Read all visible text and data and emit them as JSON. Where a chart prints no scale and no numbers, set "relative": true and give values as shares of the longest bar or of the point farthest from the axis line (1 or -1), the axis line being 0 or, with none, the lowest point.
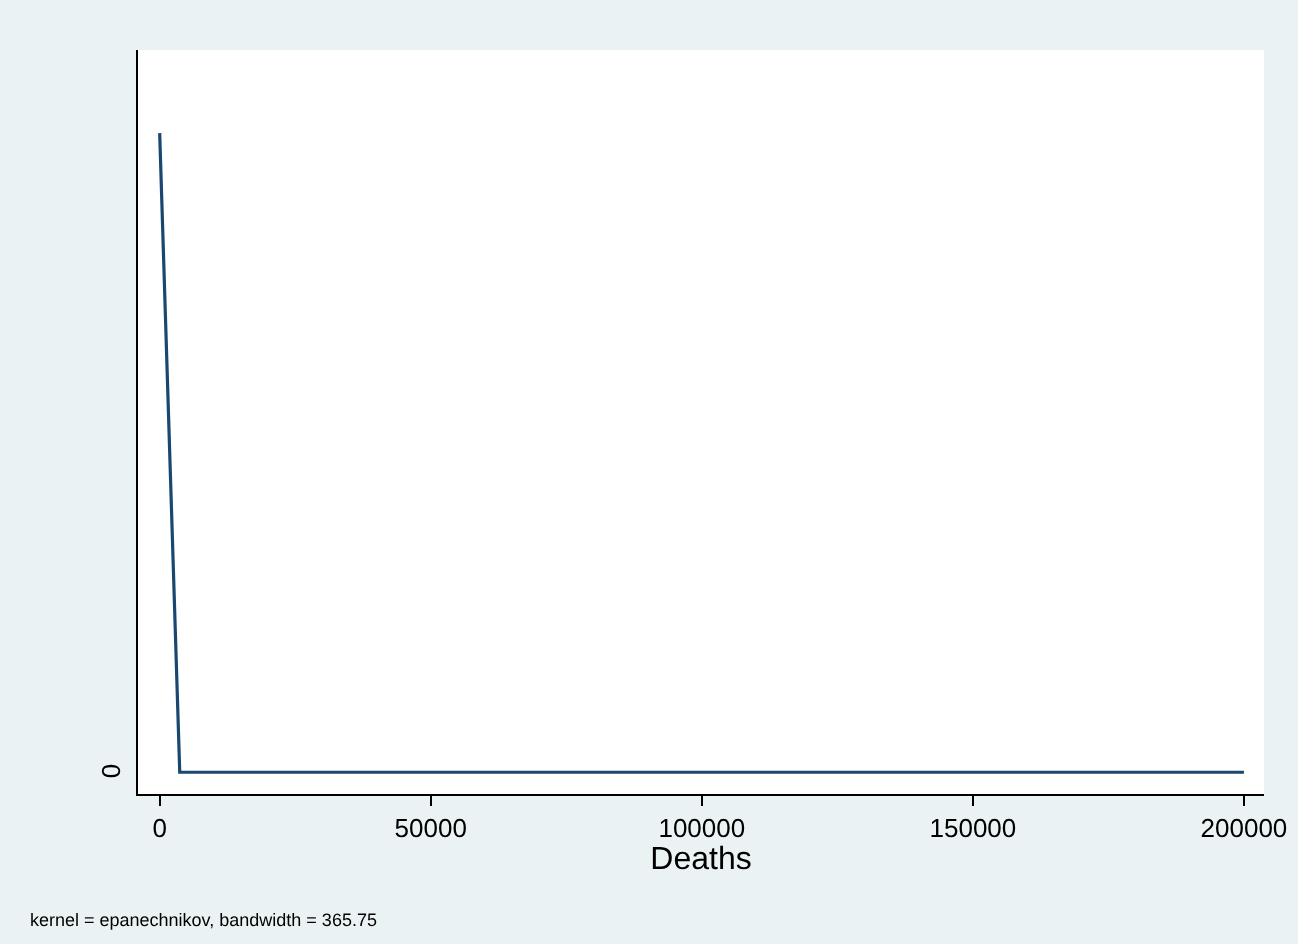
{
  "chart_data": {
    "type": "line",
    "relative": true,
    "x": [
      0,
      3700,
      200000
    ],
    "series": [
      {
        "color": "#1a476f",
        "values": [
          1,
          0,
          0
        ]
      }
    ],
    "xlabel": "Deaths",
    "xlim": [
      -4000,
      203700
    ],
    "xticks": [
      0,
      50000,
      100000,
      150000,
      200000
    ],
    "marker": "none",
    "line_style": "solid",
    "annotations": [
      "0",
      "kernel = epanechnikov, bandwidth = 365.75"
    ]
  }
}
